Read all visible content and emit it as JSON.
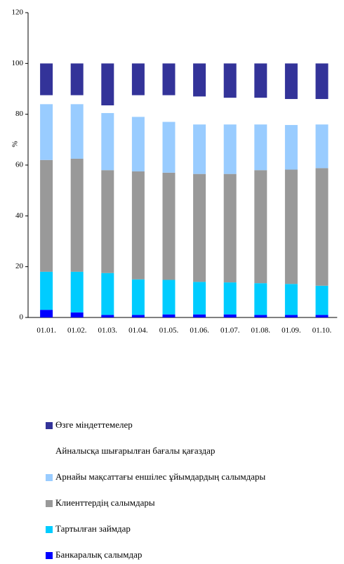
{
  "chart_data": {
    "type": "stacked_bar",
    "y_label": "%",
    "categories": [
      "01.01.",
      "01.02.",
      "01.03.",
      "01.04.",
      "01.05.",
      "01.06.",
      "01.07.",
      "01.08.",
      "01.09.",
      "01.10."
    ],
    "series": [
      {
        "name": "Банкаралық салымдар",
        "color": "#0000ff",
        "values": [
          3,
          2,
          1,
          1,
          1.2,
          1.2,
          1.2,
          1,
          1,
          1
        ]
      },
      {
        "name": "Тартылған займдар",
        "color": "#00ccff",
        "values": [
          15,
          16,
          16.5,
          14,
          13.6,
          12.8,
          12.6,
          12.5,
          12.2,
          11.5
        ]
      },
      {
        "name": "Клиенттердің салымдары",
        "color": "#999999",
        "values": [
          44,
          44.5,
          40.5,
          42.5,
          42.2,
          42.5,
          42.7,
          44.5,
          45,
          46.3
        ]
      },
      {
        "name": "Арнайы мақсаттағы еншілес ұйымдардың салымдары",
        "color": "#99ccff",
        "values": [
          22,
          21.5,
          22.5,
          21.5,
          20,
          19.5,
          19.5,
          18,
          17.6,
          17.2
        ]
      },
      {
        "name": "Айналысқа шығарылған бағалы қағаздар",
        "color": "#ffffff",
        "values": [
          3.5,
          3.5,
          3,
          8.5,
          10.5,
          11,
          10.5,
          10.5,
          10.2,
          10
        ]
      },
      {
        "name": "Өзге міндеттемелер",
        "color": "#333399",
        "values": [
          12.5,
          12.5,
          16.5,
          12.5,
          12.5,
          13,
          13.5,
          13.5,
          14,
          14
        ]
      }
    ],
    "ylim": [
      0,
      120
    ],
    "yticks": [
      0,
      20,
      40,
      60,
      80,
      100,
      120
    ]
  }
}
